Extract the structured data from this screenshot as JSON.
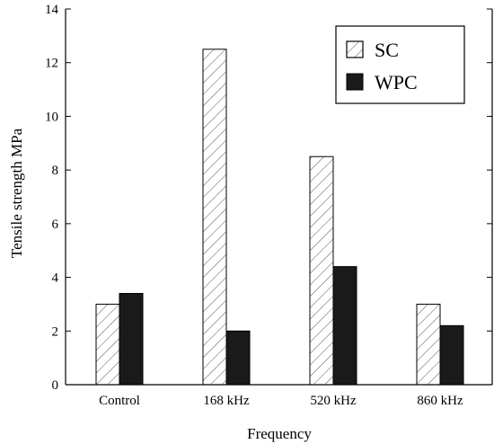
{
  "chart_data": {
    "type": "bar",
    "categories": [
      "Control",
      "168 kHz",
      "520 kHz",
      "860 kHz"
    ],
    "series": [
      {
        "name": "SC",
        "values": [
          3.0,
          12.5,
          8.5,
          3.0
        ],
        "fill": "hatched"
      },
      {
        "name": "WPC",
        "values": [
          3.4,
          2.0,
          4.4,
          2.2
        ],
        "fill": "#1a1a1a"
      }
    ],
    "xlabel": "Frequency",
    "ylabel": "Tensile strength MPa",
    "ylim": [
      0,
      14
    ],
    "yticks": [
      "0",
      "2",
      "4",
      "6",
      "8",
      "10",
      "12",
      "14"
    ],
    "legend": {
      "position": "top-right"
    },
    "grid": false
  }
}
